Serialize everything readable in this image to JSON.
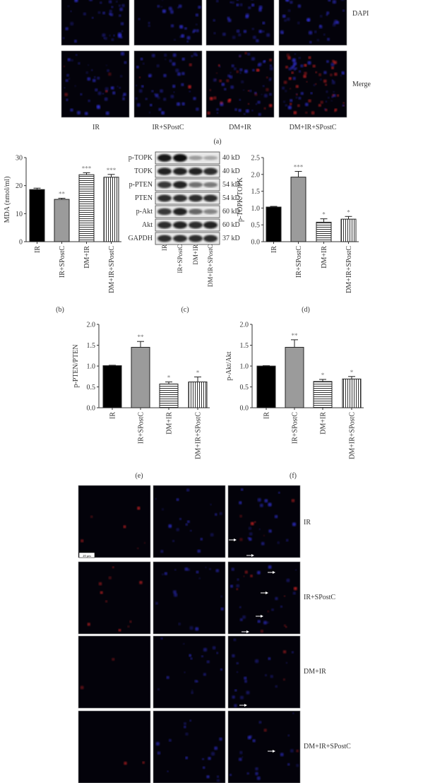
{
  "panel_a": {
    "row_labels": [
      "DAPI",
      "Merge"
    ],
    "column_labels": [
      "IR",
      "IR+SPostC",
      "DM+IR",
      "DM+IR+SPostC"
    ],
    "caption": "(a)"
  },
  "panel_c": {
    "caption": "(c)",
    "blots": [
      {
        "label": "p-TOPK",
        "size": "40 kD",
        "intensity": [
          0.95,
          1.0,
          0.35,
          0.3
        ]
      },
      {
        "label": "TOPK",
        "size": "40 kD",
        "intensity": [
          0.9,
          0.9,
          0.9,
          0.85
        ]
      },
      {
        "label": "p-PTEN",
        "size": "54 kD",
        "intensity": [
          0.8,
          0.9,
          0.55,
          0.5
        ]
      },
      {
        "label": "PTEN",
        "size": "54 kD",
        "intensity": [
          0.85,
          0.85,
          0.85,
          0.85
        ]
      },
      {
        "label": "p-Akt",
        "size": "60 kD",
        "intensity": [
          0.8,
          0.9,
          0.6,
          0.45
        ]
      },
      {
        "label": "Akt",
        "size": "60 kD",
        "intensity": [
          0.85,
          0.9,
          0.85,
          0.9
        ]
      },
      {
        "label": "GAPDH",
        "size": "37 kD",
        "intensity": [
          0.85,
          0.85,
          0.85,
          0.85
        ]
      }
    ],
    "lane_labels": [
      "IR",
      "IR+SPostC",
      "DM+IR",
      "DM+IR+SPostC"
    ]
  },
  "panel_g": {
    "row_labels": [
      "IR",
      "IR+SPostC",
      "DM+IR",
      "DM+IR+SPostC"
    ],
    "scale_bar": "20 μm"
  },
  "colors": {
    "bar_black": "#000000",
    "bar_gray": "#9b9b9b",
    "dapi": "#3a3aff",
    "tunel": "#ff2a2a"
  },
  "chart_data": [
    {
      "type": "bar",
      "caption": "(b)",
      "categories": [
        "IR",
        "IR+SPostC",
        "DM+IR",
        "DM+IR+SPostC"
      ],
      "values": [
        18.6,
        15.1,
        23.9,
        23.0
      ],
      "errors": [
        0.5,
        0.4,
        0.7,
        1.0
      ],
      "significance": [
        "",
        "**",
        "***",
        "***"
      ],
      "fill_styles": [
        "black",
        "gray",
        "horizontal-stripes",
        "vertical-stripes"
      ],
      "ylabel": "MDA (nmol/ml)",
      "ylim": [
        0,
        30
      ],
      "yticks": [
        "0",
        "10",
        "20",
        "30"
      ],
      "grid": false
    },
    {
      "type": "bar",
      "caption": "(d)",
      "categories": [
        "IR",
        "IR+SPostC",
        "DM+IR",
        "DM+IR+SPostC"
      ],
      "values": [
        1.03,
        1.92,
        0.58,
        0.67
      ],
      "errors": [
        0.02,
        0.17,
        0.1,
        0.08
      ],
      "significance": [
        "",
        "***",
        "*",
        "*"
      ],
      "fill_styles": [
        "black",
        "gray",
        "horizontal-stripes",
        "vertical-stripes"
      ],
      "ylabel": "p-TOPK/TOPK",
      "ylim": [
        0,
        2.5
      ],
      "yticks": [
        "0.0",
        "0.5",
        "1.0",
        "1.5",
        "2.0",
        "2.5"
      ],
      "grid": false
    },
    {
      "type": "bar",
      "caption": "(e)",
      "categories": [
        "IR",
        "IR+SPostC",
        "DM+IR",
        "DM+IR+SPostC"
      ],
      "values": [
        1.01,
        1.45,
        0.57,
        0.62
      ],
      "errors": [
        0.01,
        0.14,
        0.05,
        0.12
      ],
      "significance": [
        "",
        "**",
        "*",
        "*"
      ],
      "fill_styles": [
        "black",
        "gray",
        "horizontal-stripes",
        "vertical-stripes"
      ],
      "ylabel": "p-PTEN/PTEN",
      "ylim": [
        0,
        2.0
      ],
      "yticks": [
        "0.0",
        "0.5",
        "1.0",
        "1.5",
        "2.0"
      ],
      "grid": false
    },
    {
      "type": "bar",
      "caption": "(f)",
      "categories": [
        "IR",
        "IR+SPostC",
        "DM+IR",
        "DM+IR+SPostC"
      ],
      "values": [
        1.0,
        1.45,
        0.63,
        0.69
      ],
      "errors": [
        0.01,
        0.18,
        0.05,
        0.06
      ],
      "significance": [
        "",
        "**",
        "*",
        "*"
      ],
      "fill_styles": [
        "black",
        "gray",
        "horizontal-stripes",
        "vertical-stripes"
      ],
      "ylabel": "p-Akt/Akt",
      "ylim": [
        0,
        2.0
      ],
      "yticks": [
        "0.0",
        "0.5",
        "1.0",
        "1.5",
        "2.0"
      ],
      "grid": false
    }
  ]
}
